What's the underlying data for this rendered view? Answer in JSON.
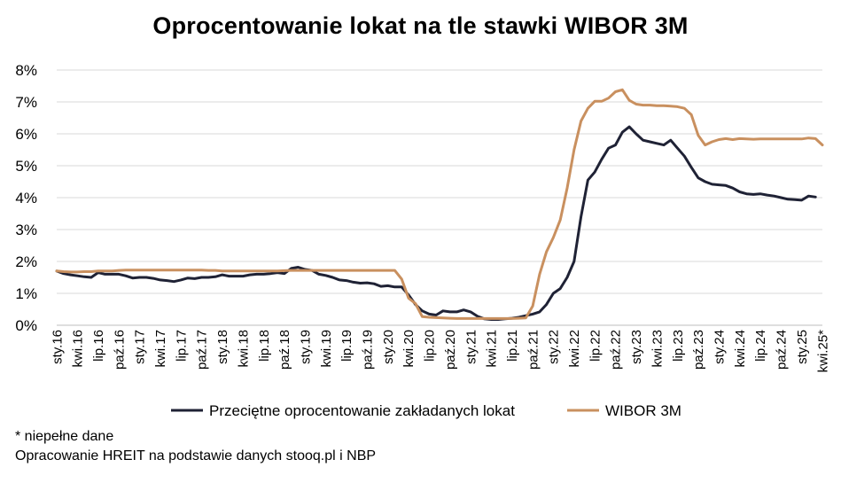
{
  "chart_data": {
    "type": "line",
    "title": "Oprocentowanie lokat na tle stawki WIBOR 3M",
    "y_unit": "%",
    "ylim": [
      0,
      8
    ],
    "y_ticks": [
      "0%",
      "1%",
      "2%",
      "3%",
      "4%",
      "5%",
      "6%",
      "7%",
      "8%"
    ],
    "grid": "horizontal",
    "legend_position": "bottom",
    "x_start": "2016-01",
    "x_end": "2025-04",
    "x_labels": [
      {
        "date": "2016-01",
        "label": "sty.16"
      },
      {
        "date": "2016-04",
        "label": "kwi.16"
      },
      {
        "date": "2016-07",
        "label": "lip.16"
      },
      {
        "date": "2016-10",
        "label": "paź.16"
      },
      {
        "date": "2017-01",
        "label": "sty.17"
      },
      {
        "date": "2017-04",
        "label": "kwi.17"
      },
      {
        "date": "2017-07",
        "label": "lip.17"
      },
      {
        "date": "2017-10",
        "label": "paź.17"
      },
      {
        "date": "2018-01",
        "label": "sty.18"
      },
      {
        "date": "2018-04",
        "label": "kwi.18"
      },
      {
        "date": "2018-07",
        "label": "lip.18"
      },
      {
        "date": "2018-10",
        "label": "paź.18"
      },
      {
        "date": "2019-01",
        "label": "sty.19"
      },
      {
        "date": "2019-04",
        "label": "kwi.19"
      },
      {
        "date": "2019-07",
        "label": "lip.19"
      },
      {
        "date": "2019-10",
        "label": "paź.19"
      },
      {
        "date": "2020-01",
        "label": "sty.20"
      },
      {
        "date": "2020-04",
        "label": "kwi.20"
      },
      {
        "date": "2020-07",
        "label": "lip.20"
      },
      {
        "date": "2020-10",
        "label": "paź.20"
      },
      {
        "date": "2021-01",
        "label": "sty.21"
      },
      {
        "date": "2021-04",
        "label": "kwi.21"
      },
      {
        "date": "2021-07",
        "label": "lip.21"
      },
      {
        "date": "2021-10",
        "label": "paź.21"
      },
      {
        "date": "2022-01",
        "label": "sty.22"
      },
      {
        "date": "2022-04",
        "label": "kwi.22"
      },
      {
        "date": "2022-07",
        "label": "lip.22"
      },
      {
        "date": "2022-10",
        "label": "paź.22"
      },
      {
        "date": "2023-01",
        "label": "sty.23"
      },
      {
        "date": "2023-04",
        "label": "kwi.23"
      },
      {
        "date": "2023-07",
        "label": "lip.23"
      },
      {
        "date": "2023-10",
        "label": "paź.23"
      },
      {
        "date": "2024-01",
        "label": "sty.24"
      },
      {
        "date": "2024-04",
        "label": "kwi.24"
      },
      {
        "date": "2024-07",
        "label": "lip.24"
      },
      {
        "date": "2024-10",
        "label": "paź.24"
      },
      {
        "date": "2025-01",
        "label": "sty.25"
      },
      {
        "date": "2025-04",
        "label": "kwi.25*"
      }
    ],
    "series": [
      {
        "name": "Przeciętne oprocentowanie zakładanych lokat",
        "color": "#1f2235",
        "points": [
          [
            "2016-01",
            1.7
          ],
          [
            "2016-02",
            1.62
          ],
          [
            "2016-03",
            1.58
          ],
          [
            "2016-04",
            1.55
          ],
          [
            "2016-05",
            1.52
          ],
          [
            "2016-06",
            1.5
          ],
          [
            "2016-07",
            1.65
          ],
          [
            "2016-08",
            1.6
          ],
          [
            "2016-09",
            1.6
          ],
          [
            "2016-10",
            1.6
          ],
          [
            "2016-11",
            1.55
          ],
          [
            "2016-12",
            1.48
          ],
          [
            "2017-01",
            1.5
          ],
          [
            "2017-02",
            1.5
          ],
          [
            "2017-03",
            1.47
          ],
          [
            "2017-04",
            1.42
          ],
          [
            "2017-05",
            1.4
          ],
          [
            "2017-06",
            1.37
          ],
          [
            "2017-07",
            1.42
          ],
          [
            "2017-08",
            1.48
          ],
          [
            "2017-09",
            1.46
          ],
          [
            "2017-10",
            1.5
          ],
          [
            "2017-11",
            1.5
          ],
          [
            "2017-12",
            1.52
          ],
          [
            "2018-01",
            1.58
          ],
          [
            "2018-02",
            1.54
          ],
          [
            "2018-03",
            1.54
          ],
          [
            "2018-04",
            1.54
          ],
          [
            "2018-05",
            1.58
          ],
          [
            "2018-06",
            1.6
          ],
          [
            "2018-07",
            1.6
          ],
          [
            "2018-08",
            1.62
          ],
          [
            "2018-09",
            1.65
          ],
          [
            "2018-10",
            1.62
          ],
          [
            "2018-11",
            1.78
          ],
          [
            "2018-12",
            1.82
          ],
          [
            "2019-01",
            1.75
          ],
          [
            "2019-02",
            1.72
          ],
          [
            "2019-03",
            1.6
          ],
          [
            "2019-04",
            1.56
          ],
          [
            "2019-05",
            1.5
          ],
          [
            "2019-06",
            1.42
          ],
          [
            "2019-07",
            1.4
          ],
          [
            "2019-08",
            1.35
          ],
          [
            "2019-09",
            1.32
          ],
          [
            "2019-10",
            1.33
          ],
          [
            "2019-11",
            1.3
          ],
          [
            "2019-12",
            1.22
          ],
          [
            "2020-01",
            1.24
          ],
          [
            "2020-02",
            1.2
          ],
          [
            "2020-03",
            1.2
          ],
          [
            "2020-04",
            0.95
          ],
          [
            "2020-05",
            0.65
          ],
          [
            "2020-06",
            0.45
          ],
          [
            "2020-07",
            0.35
          ],
          [
            "2020-08",
            0.32
          ],
          [
            "2020-09",
            0.45
          ],
          [
            "2020-10",
            0.42
          ],
          [
            "2020-11",
            0.42
          ],
          [
            "2020-12",
            0.48
          ],
          [
            "2021-01",
            0.42
          ],
          [
            "2021-02",
            0.28
          ],
          [
            "2021-03",
            0.2
          ],
          [
            "2021-04",
            0.18
          ],
          [
            "2021-05",
            0.18
          ],
          [
            "2021-06",
            0.2
          ],
          [
            "2021-07",
            0.22
          ],
          [
            "2021-08",
            0.25
          ],
          [
            "2021-09",
            0.3
          ],
          [
            "2021-10",
            0.35
          ],
          [
            "2021-11",
            0.42
          ],
          [
            "2021-12",
            0.65
          ],
          [
            "2022-01",
            1.0
          ],
          [
            "2022-02",
            1.15
          ],
          [
            "2022-03",
            1.5
          ],
          [
            "2022-04",
            2.0
          ],
          [
            "2022-05",
            3.4
          ],
          [
            "2022-06",
            4.55
          ],
          [
            "2022-07",
            4.8
          ],
          [
            "2022-08",
            5.2
          ],
          [
            "2022-09",
            5.55
          ],
          [
            "2022-10",
            5.65
          ],
          [
            "2022-11",
            6.05
          ],
          [
            "2022-12",
            6.22
          ],
          [
            "2023-01",
            6.0
          ],
          [
            "2023-02",
            5.8
          ],
          [
            "2023-03",
            5.75
          ],
          [
            "2023-04",
            5.7
          ],
          [
            "2023-05",
            5.65
          ],
          [
            "2023-06",
            5.8
          ],
          [
            "2023-07",
            5.55
          ],
          [
            "2023-08",
            5.3
          ],
          [
            "2023-09",
            4.95
          ],
          [
            "2023-10",
            4.62
          ],
          [
            "2023-11",
            4.5
          ],
          [
            "2023-12",
            4.42
          ],
          [
            "2024-01",
            4.4
          ],
          [
            "2024-02",
            4.38
          ],
          [
            "2024-03",
            4.3
          ],
          [
            "2024-04",
            4.18
          ],
          [
            "2024-05",
            4.12
          ],
          [
            "2024-06",
            4.1
          ],
          [
            "2024-07",
            4.12
          ],
          [
            "2024-08",
            4.08
          ],
          [
            "2024-09",
            4.05
          ],
          [
            "2024-10",
            4.0
          ],
          [
            "2024-11",
            3.95
          ],
          [
            "2024-12",
            3.94
          ],
          [
            "2025-01",
            3.92
          ],
          [
            "2025-02",
            4.05
          ],
          [
            "2025-03",
            4.02
          ]
        ]
      },
      {
        "name": "WIBOR 3M",
        "color": "#c9905f",
        "points": [
          [
            "2016-01",
            1.7
          ],
          [
            "2016-02",
            1.68
          ],
          [
            "2016-03",
            1.67
          ],
          [
            "2016-04",
            1.67
          ],
          [
            "2016-05",
            1.68
          ],
          [
            "2016-06",
            1.68
          ],
          [
            "2016-07",
            1.7
          ],
          [
            "2016-08",
            1.7
          ],
          [
            "2016-09",
            1.7
          ],
          [
            "2016-10",
            1.72
          ],
          [
            "2016-11",
            1.73
          ],
          [
            "2016-12",
            1.73
          ],
          [
            "2017-01",
            1.73
          ],
          [
            "2017-02",
            1.73
          ],
          [
            "2017-03",
            1.73
          ],
          [
            "2017-04",
            1.73
          ],
          [
            "2017-05",
            1.73
          ],
          [
            "2017-06",
            1.73
          ],
          [
            "2017-07",
            1.73
          ],
          [
            "2017-08",
            1.73
          ],
          [
            "2017-09",
            1.73
          ],
          [
            "2017-10",
            1.73
          ],
          [
            "2017-11",
            1.72
          ],
          [
            "2017-12",
            1.72
          ],
          [
            "2018-01",
            1.7
          ],
          [
            "2018-02",
            1.7
          ],
          [
            "2018-03",
            1.7
          ],
          [
            "2018-04",
            1.7
          ],
          [
            "2018-05",
            1.7
          ],
          [
            "2018-06",
            1.7
          ],
          [
            "2018-07",
            1.7
          ],
          [
            "2018-08",
            1.7
          ],
          [
            "2018-09",
            1.7
          ],
          [
            "2018-10",
            1.71
          ],
          [
            "2018-11",
            1.72
          ],
          [
            "2018-12",
            1.72
          ],
          [
            "2019-01",
            1.72
          ],
          [
            "2019-02",
            1.72
          ],
          [
            "2019-03",
            1.72
          ],
          [
            "2019-04",
            1.72
          ],
          [
            "2019-05",
            1.72
          ],
          [
            "2019-06",
            1.72
          ],
          [
            "2019-07",
            1.72
          ],
          [
            "2019-08",
            1.72
          ],
          [
            "2019-09",
            1.72
          ],
          [
            "2019-10",
            1.72
          ],
          [
            "2019-11",
            1.72
          ],
          [
            "2019-12",
            1.72
          ],
          [
            "2020-01",
            1.72
          ],
          [
            "2020-02",
            1.72
          ],
          [
            "2020-03",
            1.45
          ],
          [
            "2020-04",
            0.85
          ],
          [
            "2020-05",
            0.68
          ],
          [
            "2020-06",
            0.27
          ],
          [
            "2020-07",
            0.25
          ],
          [
            "2020-08",
            0.24
          ],
          [
            "2020-09",
            0.23
          ],
          [
            "2020-10",
            0.22
          ],
          [
            "2020-11",
            0.21
          ],
          [
            "2020-12",
            0.21
          ],
          [
            "2021-01",
            0.21
          ],
          [
            "2021-02",
            0.21
          ],
          [
            "2021-03",
            0.21
          ],
          [
            "2021-04",
            0.21
          ],
          [
            "2021-05",
            0.21
          ],
          [
            "2021-06",
            0.21
          ],
          [
            "2021-07",
            0.21
          ],
          [
            "2021-08",
            0.22
          ],
          [
            "2021-09",
            0.23
          ],
          [
            "2021-10",
            0.6
          ],
          [
            "2021-11",
            1.6
          ],
          [
            "2021-12",
            2.3
          ],
          [
            "2022-01",
            2.75
          ],
          [
            "2022-02",
            3.3
          ],
          [
            "2022-03",
            4.3
          ],
          [
            "2022-04",
            5.5
          ],
          [
            "2022-05",
            6.4
          ],
          [
            "2022-06",
            6.8
          ],
          [
            "2022-07",
            7.02
          ],
          [
            "2022-08",
            7.02
          ],
          [
            "2022-09",
            7.12
          ],
          [
            "2022-10",
            7.32
          ],
          [
            "2022-11",
            7.38
          ],
          [
            "2022-12",
            7.05
          ],
          [
            "2023-01",
            6.93
          ],
          [
            "2023-02",
            6.9
          ],
          [
            "2023-03",
            6.9
          ],
          [
            "2023-04",
            6.88
          ],
          [
            "2023-05",
            6.88
          ],
          [
            "2023-06",
            6.87
          ],
          [
            "2023-07",
            6.85
          ],
          [
            "2023-08",
            6.8
          ],
          [
            "2023-09",
            6.6
          ],
          [
            "2023-10",
            5.95
          ],
          [
            "2023-11",
            5.65
          ],
          [
            "2023-12",
            5.75
          ],
          [
            "2024-01",
            5.82
          ],
          [
            "2024-02",
            5.85
          ],
          [
            "2024-03",
            5.82
          ],
          [
            "2024-04",
            5.85
          ],
          [
            "2024-05",
            5.84
          ],
          [
            "2024-06",
            5.83
          ],
          [
            "2024-07",
            5.84
          ],
          [
            "2024-08",
            5.84
          ],
          [
            "2024-09",
            5.84
          ],
          [
            "2024-10",
            5.84
          ],
          [
            "2024-11",
            5.84
          ],
          [
            "2024-12",
            5.84
          ],
          [
            "2025-01",
            5.84
          ],
          [
            "2025-02",
            5.87
          ],
          [
            "2025-03",
            5.85
          ],
          [
            "2025-04",
            5.65
          ]
        ]
      }
    ]
  },
  "footnotes": {
    "note": "* niepełne dane",
    "source": "Opracowanie HREIT na podstawie danych stooq.pl i NBP"
  }
}
